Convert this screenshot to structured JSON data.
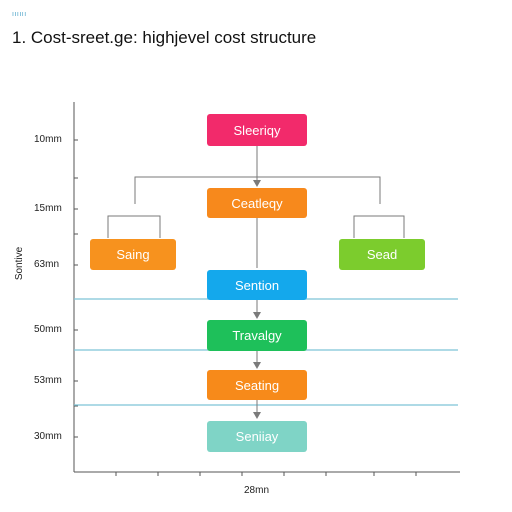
{
  "header": {
    "eyebrow": "ıııııı",
    "title": "1. Cost-sreet.ge: highjevel cost structure"
  },
  "axes": {
    "y_title": "Sontive",
    "x_label": "28mn",
    "y_ticks": [
      "10mm",
      "15mm",
      "63mn",
      "50mm",
      "53mm",
      "30mm"
    ]
  },
  "nodes": [
    {
      "id": "sleeriogy",
      "label": "Sleeriqy",
      "color": "#f22a6b"
    },
    {
      "id": "ceatleqy",
      "label": "Ceatleqy",
      "color": "#f7891c"
    },
    {
      "id": "saing",
      "label": "Saing",
      "color": "#f7921e"
    },
    {
      "id": "sead",
      "label": "Sead",
      "color": "#7ccc2d"
    },
    {
      "id": "sention",
      "label": "Sention",
      "color": "#14a8ec"
    },
    {
      "id": "travaigy",
      "label": "Travalgy",
      "color": "#1ec05a"
    },
    {
      "id": "seating",
      "label": "Seating",
      "color": "#f78a1a"
    },
    {
      "id": "seniay",
      "label": "Seniiay",
      "color": "#7fd4c6"
    }
  ],
  "colors": {
    "axis": "#555555",
    "connector": "#7a7a7a",
    "band": "#7ec4d6"
  }
}
